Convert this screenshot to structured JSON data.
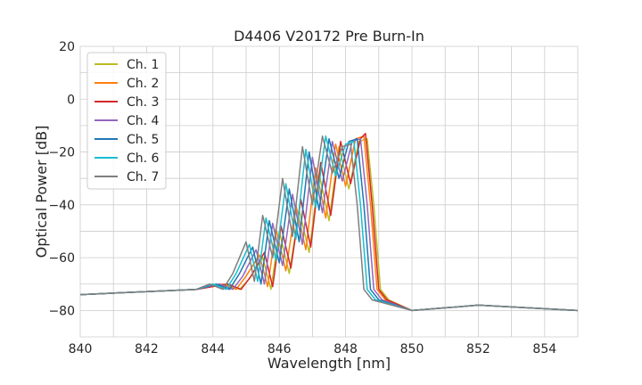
{
  "chart_data": {
    "type": "line",
    "title": "D4406 V20172 Pre Burn-In",
    "xlabel": "Wavelength [nm]",
    "ylabel": "Optical Power [dB]",
    "xlim": [
      840,
      855
    ],
    "ylim": [
      -90,
      20
    ],
    "xticks": [
      840,
      842,
      844,
      846,
      848,
      850,
      852,
      854
    ],
    "yticks": [
      -80,
      -60,
      -40,
      -20,
      0,
      20
    ],
    "grid": true,
    "legend_position": "top-left",
    "series": [
      {
        "name": "Ch. 1",
        "color": "#bcbd22",
        "x": [
          840.0,
          843.5,
          844.4,
          844.8,
          845.1,
          845.5,
          845.75,
          846.0,
          846.3,
          846.6,
          846.9,
          847.2,
          847.5,
          847.8,
          848.1,
          848.4,
          848.65,
          848.85,
          849.05,
          849.3,
          850.0,
          852.0,
          855.0
        ],
        "y": [
          -74,
          -72,
          -70,
          -72,
          -68,
          -60,
          -72,
          -50,
          -66,
          -42,
          -58,
          -28,
          -46,
          -18,
          -34,
          -16,
          -15,
          -40,
          -72,
          -76,
          -80,
          -78,
          -80
        ]
      },
      {
        "name": "Ch. 2",
        "color": "#ff7f0e",
        "x": [
          840.0,
          843.5,
          844.3,
          844.7,
          845.0,
          845.4,
          845.65,
          845.9,
          846.2,
          846.5,
          846.8,
          847.1,
          847.4,
          847.7,
          848.0,
          848.3,
          848.55,
          848.75,
          848.95,
          849.2,
          850.0,
          852.0,
          855.0
        ],
        "y": [
          -74,
          -72,
          -70,
          -72,
          -67,
          -59,
          -71,
          -49,
          -65,
          -40,
          -57,
          -26,
          -45,
          -17,
          -33,
          -15,
          -14,
          -40,
          -72,
          -76,
          -80,
          -78,
          -80
        ]
      },
      {
        "name": "Ch. 3",
        "color": "#d62728",
        "x": [
          840.0,
          843.5,
          844.45,
          844.85,
          845.15,
          845.55,
          845.8,
          846.05,
          846.35,
          846.65,
          846.95,
          847.25,
          847.55,
          847.85,
          848.15,
          848.45,
          848.6,
          848.8,
          849.0,
          849.25,
          850.0,
          852.0,
          855.0
        ],
        "y": [
          -74,
          -72,
          -70,
          -72,
          -67,
          -58,
          -71,
          -48,
          -64,
          -38,
          -56,
          -24,
          -44,
          -16,
          -32,
          -15,
          -13,
          -40,
          -72,
          -76,
          -80,
          -78,
          -80
        ]
      },
      {
        "name": "Ch. 4",
        "color": "#9467bd",
        "x": [
          840.0,
          843.5,
          844.2,
          844.6,
          844.9,
          845.3,
          845.55,
          845.8,
          846.1,
          846.4,
          846.7,
          847.0,
          847.3,
          847.6,
          847.9,
          848.2,
          848.45,
          848.65,
          848.85,
          849.1,
          850.0,
          852.0,
          855.0
        ],
        "y": [
          -74,
          -72,
          -70,
          -72,
          -67,
          -57,
          -70,
          -47,
          -63,
          -36,
          -55,
          -22,
          -43,
          -16,
          -31,
          -16,
          -15,
          -40,
          -72,
          -76,
          -80,
          -78,
          -80
        ]
      },
      {
        "name": "Ch. 5",
        "color": "#1f77b4",
        "x": [
          840.0,
          843.5,
          844.1,
          844.5,
          844.8,
          845.2,
          845.45,
          845.7,
          846.0,
          846.3,
          846.6,
          846.9,
          847.2,
          847.5,
          847.8,
          848.1,
          848.35,
          848.55,
          848.75,
          849.0,
          850.0,
          852.0,
          855.0
        ],
        "y": [
          -74,
          -72,
          -70,
          -72,
          -66,
          -56,
          -70,
          -46,
          -62,
          -34,
          -54,
          -20,
          -42,
          -15,
          -30,
          -16,
          -15,
          -40,
          -72,
          -76,
          -80,
          -78,
          -80
        ]
      },
      {
        "name": "Ch. 6",
        "color": "#17becf",
        "x": [
          840.0,
          843.5,
          844.0,
          844.4,
          844.7,
          845.1,
          845.35,
          845.6,
          845.9,
          846.2,
          846.5,
          846.8,
          847.1,
          847.4,
          847.7,
          848.0,
          848.25,
          848.45,
          848.65,
          848.9,
          850.0,
          852.0,
          855.0
        ],
        "y": [
          -74,
          -72,
          -70,
          -72,
          -66,
          -55,
          -69,
          -45,
          -61,
          -32,
          -53,
          -19,
          -41,
          -14,
          -29,
          -17,
          -16,
          -40,
          -72,
          -76,
          -80,
          -78,
          -80
        ]
      },
      {
        "name": "Ch. 7",
        "color": "#7f7f7f",
        "x": [
          840.0,
          843.5,
          843.9,
          844.3,
          844.6,
          845.0,
          845.25,
          845.5,
          845.8,
          846.1,
          846.4,
          846.7,
          847.0,
          847.3,
          847.6,
          847.9,
          848.15,
          848.35,
          848.55,
          848.8,
          850.0,
          852.0,
          855.0
        ],
        "y": [
          -74,
          -72,
          -70,
          -72,
          -66,
          -54,
          -69,
          -44,
          -60,
          -30,
          -52,
          -18,
          -40,
          -14,
          -28,
          -18,
          -17,
          -40,
          -72,
          -76,
          -80,
          -78,
          -80
        ]
      }
    ]
  }
}
